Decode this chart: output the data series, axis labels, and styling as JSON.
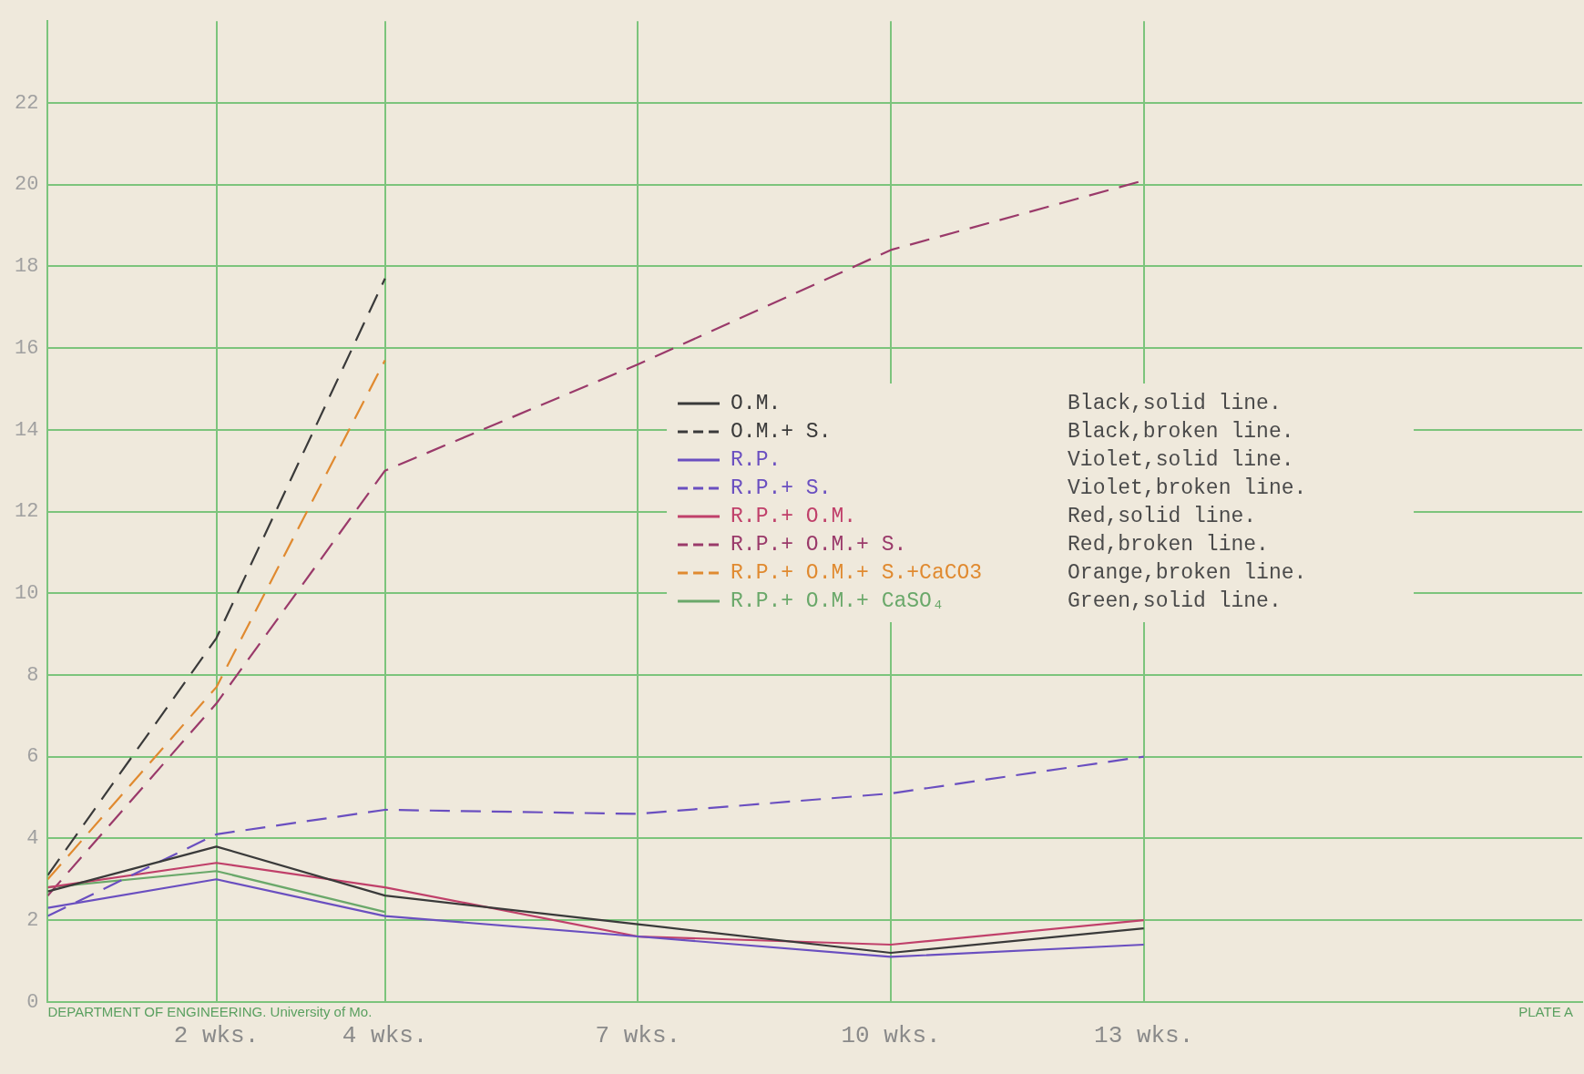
{
  "chart_data": {
    "type": "line",
    "xlim": [
      0,
      18.2
    ],
    "ylim": [
      0,
      24
    ],
    "xticks": [
      {
        "value": 2,
        "label": "2 wks."
      },
      {
        "value": 4,
        "label": "4 wks."
      },
      {
        "value": 7,
        "label": "7 wks."
      },
      {
        "value": 10,
        "label": "10 wks."
      },
      {
        "value": 13,
        "label": "13 wks."
      }
    ],
    "yticks": [
      0,
      2,
      4,
      6,
      8,
      10,
      12,
      14,
      16,
      18,
      20,
      22
    ],
    "grid": true,
    "legend": "right",
    "marker": "none",
    "series": [
      {
        "name": "O.M.",
        "color": "#3a3a3a",
        "line_style": "solid",
        "x": [
          0,
          2,
          4,
          7,
          10,
          13
        ],
        "values": [
          2.7,
          3.8,
          2.6,
          1.9,
          1.2,
          1.8
        ]
      },
      {
        "name": "O.M.+ S.",
        "color": "#3a3a3a",
        "line_style": "dashed",
        "x": [
          0,
          2,
          4
        ],
        "values": [
          3.1,
          8.9,
          17.7
        ]
      },
      {
        "name": "R.P.",
        "color": "#6a4fc0",
        "line_style": "solid",
        "x": [
          0,
          2,
          4,
          7,
          10,
          13
        ],
        "values": [
          2.3,
          3.0,
          2.1,
          1.6,
          1.1,
          1.4
        ]
      },
      {
        "name": "R.P.+ S.",
        "color": "#6a4fc0",
        "line_style": "dashed",
        "x": [
          0,
          2,
          4,
          7,
          10,
          13
        ],
        "values": [
          2.1,
          4.1,
          4.7,
          4.6,
          5.1,
          6.0
        ]
      },
      {
        "name": "R.P.+ O.M.",
        "color": "#c0406a",
        "line_style": "solid",
        "x": [
          0,
          2,
          4,
          7,
          10,
          13
        ],
        "values": [
          2.8,
          3.4,
          2.8,
          1.6,
          1.4,
          2.0
        ]
      },
      {
        "name": "R.P.+ O.M.+ S.",
        "color": "#9a3a6a",
        "line_style": "dashed",
        "x": [
          0,
          2,
          4,
          7,
          10,
          13
        ],
        "values": [
          2.6,
          7.3,
          13.0,
          15.6,
          18.4,
          20.1
        ]
      },
      {
        "name": "R.P.+ O.M.+ S.+CaCO3",
        "color": "#e08a30",
        "line_style": "dashed",
        "x": [
          0,
          2,
          4
        ],
        "values": [
          3.0,
          7.7,
          15.7
        ]
      },
      {
        "name": "R.P.+ O.M.+ CaSO₄",
        "color": "#6aa86a",
        "line_style": "solid",
        "x": [
          0,
          2,
          4
        ],
        "values": [
          2.8,
          3.2,
          2.2
        ]
      }
    ],
    "annotations": [
      "Black,solid line.",
      "Black,broken line.",
      "Violet,solid line.",
      "Violet,broken line.",
      "Red,solid line.",
      "Red,broken line.",
      "Orange,broken line.",
      "Green,solid line.",
      "DEPARTMENT OF ENGINEERING. University of Mo.",
      "PLATE A"
    ]
  }
}
